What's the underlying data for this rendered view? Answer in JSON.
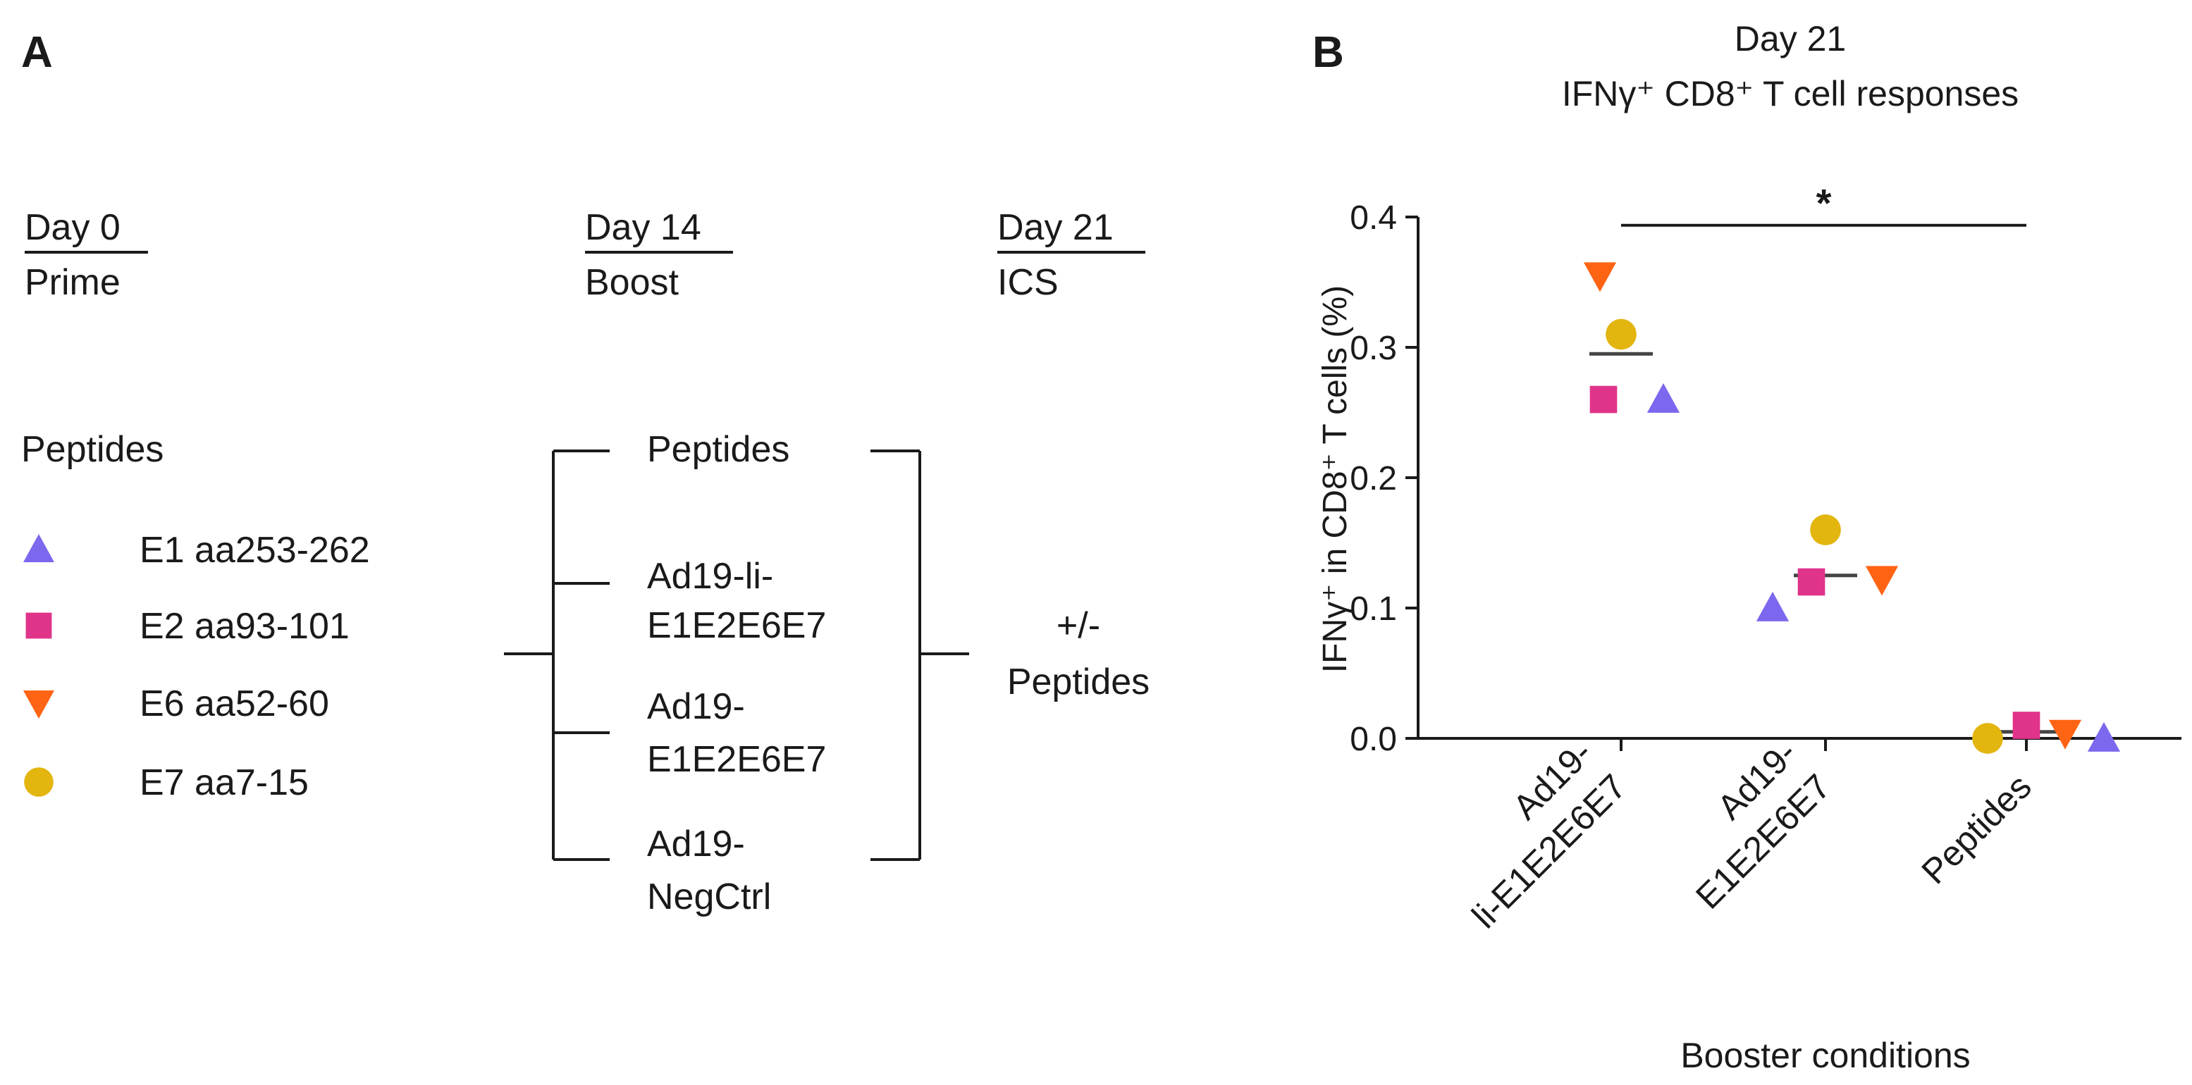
{
  "panel_a": {
    "label": "A",
    "timeline": [
      {
        "day": "Day 0",
        "step": "Prime"
      },
      {
        "day": "Day 14",
        "step": "Boost"
      },
      {
        "day": "Day 21",
        "step": "ICS"
      }
    ],
    "peptides_heading": "Peptides",
    "legend": [
      {
        "marker": "triangle-up",
        "color": "#7b68ee",
        "label": "E1 aa253-262"
      },
      {
        "marker": "square",
        "color": "#e0338a",
        "label": "E2 aa93-101"
      },
      {
        "marker": "triangle-down",
        "color": "#ff6414",
        "label": "E6 aa52-60"
      },
      {
        "marker": "circle",
        "color": "#e3b50f",
        "label": "E7 aa7-15"
      }
    ],
    "boosts": [
      {
        "lines": [
          "Peptides"
        ]
      },
      {
        "lines": [
          "Ad19-li-",
          "E1E2E6E7"
        ]
      },
      {
        "lines": [
          "Ad19-",
          "E1E2E6E7"
        ]
      },
      {
        "lines": [
          "Ad19-",
          "NegCtrl"
        ]
      }
    ],
    "ics_lines": [
      "+/-",
      "Peptides"
    ]
  },
  "chart_data": {
    "type": "scatter",
    "panel_label": "B",
    "title": "Day 21",
    "subtitle": "IFNγ⁺ CD8⁺ T cell responses",
    "ylabel": "IFNγ⁺ in CD8⁺ T cells (%)",
    "xlabel": "Booster conditions",
    "ylim": [
      0,
      0.4
    ],
    "yticks": [
      "0.0",
      "0.1",
      "0.2",
      "0.3",
      "0.4"
    ],
    "categories": [
      {
        "lines": [
          "Ad19-",
          "li-E1E2E6E7"
        ]
      },
      {
        "lines": [
          "Ad19-",
          "E1E2E6E7"
        ]
      },
      {
        "lines": [
          "Peptides"
        ]
      }
    ],
    "series": [
      {
        "name": "E1 aa253-262",
        "marker": "triangle-up",
        "color": "#7b68ee",
        "values": [
          0.26,
          0.1,
          0.0
        ]
      },
      {
        "name": "E2 aa93-101",
        "marker": "square",
        "color": "#e0338a",
        "values": [
          0.26,
          0.12,
          0.01
        ]
      },
      {
        "name": "E6 aa52-60",
        "marker": "triangle-down",
        "color": "#ff6414",
        "values": [
          0.355,
          0.122,
          0.004
        ]
      },
      {
        "name": "E7 aa7-15",
        "marker": "circle",
        "color": "#e3b50f",
        "values": [
          0.31,
          0.16,
          0.0
        ]
      }
    ],
    "means": [
      0.295,
      0.125,
      0.005
    ],
    "significance": {
      "from": 0,
      "to": 2,
      "y": 0.398,
      "label": "*"
    }
  }
}
